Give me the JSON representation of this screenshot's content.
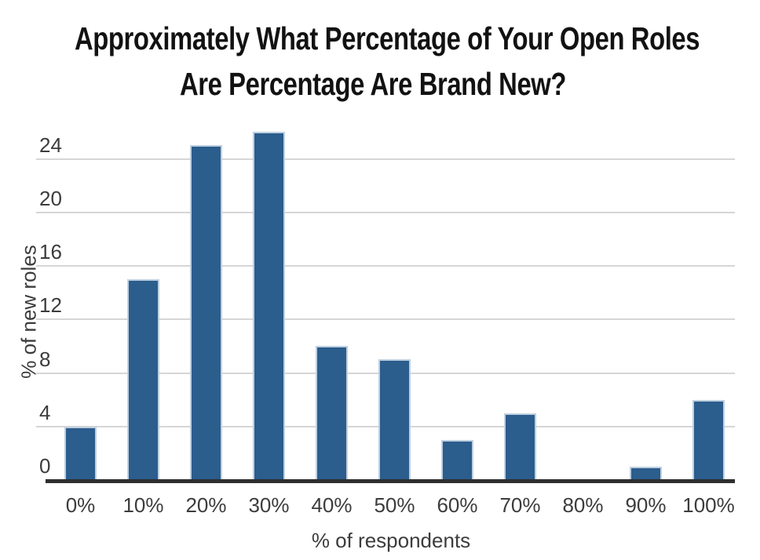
{
  "title": {
    "line1": "Approximately What Percentage of Your Open Roles",
    "line2": "Are Percentage Are Brand New?"
  },
  "chart_data": {
    "type": "bar",
    "title": "Approximately What Percentage of Your Open Roles Are Percentage Are Brand New?",
    "categories": [
      "0%",
      "10%",
      "20%",
      "30%",
      "40%",
      "50%",
      "60%",
      "70%",
      "80%",
      "90%",
      "100%"
    ],
    "values": [
      4,
      15,
      25,
      26,
      10,
      9,
      3,
      5,
      0,
      1,
      6
    ],
    "xlabel": "% of respondents",
    "ylabel": "% of new roles",
    "yticks": [
      0,
      4,
      8,
      12,
      16,
      20,
      24
    ],
    "ylim": [
      0,
      26.5
    ],
    "grid": true,
    "legend": false,
    "colors": {
      "bar_fill": "#2b5d8d",
      "bar_edge": "#bfd0e0",
      "gridline": "#d6d6d6",
      "axis_line": "#2f2f2f",
      "tick_text": "#3c3c3c",
      "title_text": "#121212",
      "background": "#ffffff"
    }
  }
}
